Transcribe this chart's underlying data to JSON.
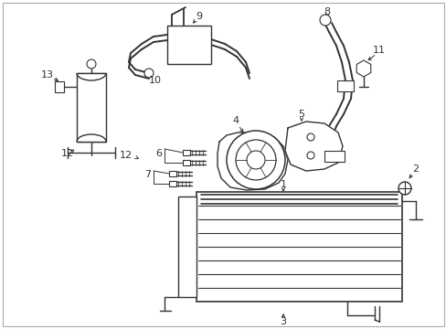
{
  "bg_color": "#ffffff",
  "line_color": "#333333",
  "lw": 1.0,
  "fig_w": 4.89,
  "fig_h": 3.6,
  "dpi": 100
}
